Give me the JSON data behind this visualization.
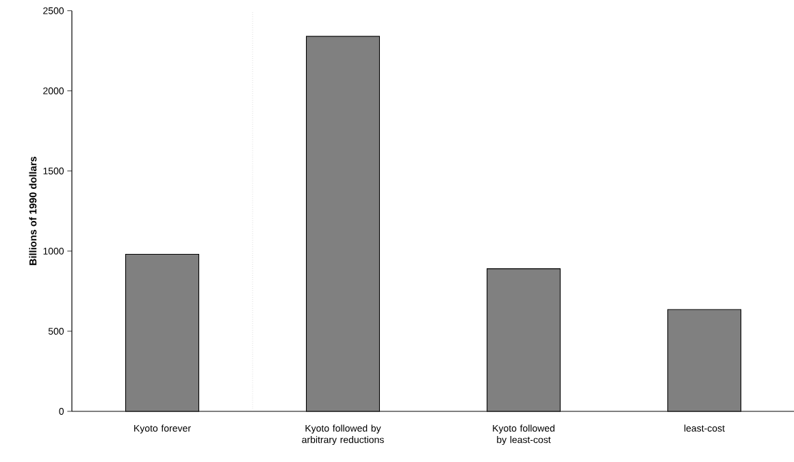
{
  "chart_data": {
    "type": "bar",
    "ylabel": "Billions of 1990 dollars",
    "categories": [
      "Kyoto forever",
      "Kyoto followed by arbitrary reductions",
      "Kyoto followed by least-cost",
      "least-cost"
    ],
    "values": [
      980,
      2340,
      890,
      635
    ],
    "color": "#808080",
    "ylim": [
      0,
      2500
    ],
    "yticks": [
      0,
      500,
      1000,
      1500,
      2000,
      2500
    ],
    "grid": false
  }
}
